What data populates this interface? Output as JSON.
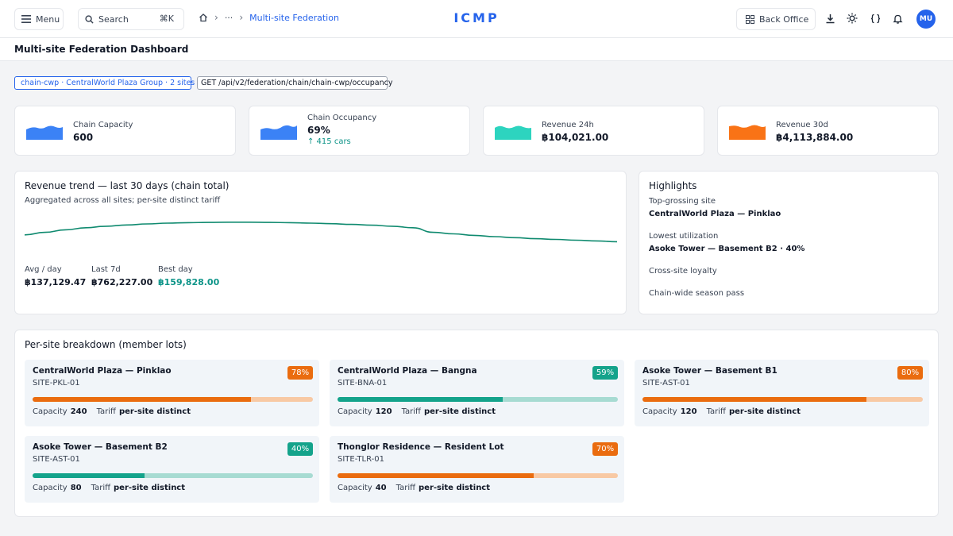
{
  "topbar": {
    "menu_label": "Menu",
    "search_label": "Search",
    "search_shortcut": "⌘K",
    "breadcrumb_ellipsis": "···",
    "breadcrumb_current": "Multi-site Federation",
    "brand": "ICMP",
    "back_office_label": "Back Office",
    "avatar_initials": "MU"
  },
  "page": {
    "title": "Multi-site Federation Dashboard"
  },
  "chips": {
    "chain": "chain-cwp · CentralWorld Plaza Group · 2 sites",
    "api": "GET /api/v2/federation/chain/chain-cwp/occupancy"
  },
  "kpis": [
    {
      "label": "Chain Capacity",
      "value": "600",
      "color": "#3b82f6"
    },
    {
      "label": "Chain Occupancy",
      "value": "69%",
      "sub": "↑ 415 cars",
      "color": "#3b82f6"
    },
    {
      "label": "Revenue 24h",
      "value": "฿104,021.00",
      "color": "#2dd4bf"
    },
    {
      "label": "Revenue 30d",
      "value": "฿4,113,884.00",
      "color": "#f97316"
    }
  ],
  "trend": {
    "title": "Revenue trend — last 30 days (chain total)",
    "subtitle": "Aggregated across all sites; per-site distinct tariff",
    "stats": [
      {
        "label": "Avg / day",
        "value": "฿137,129.47"
      },
      {
        "label": "Last 7d",
        "value": "฿762,227.00"
      },
      {
        "label": "Best day",
        "value": "฿159,828.00"
      }
    ]
  },
  "chart_data": {
    "type": "line",
    "title": "",
    "xlabel": "",
    "ylabel": "",
    "y": [
      0.32,
      0.42,
      0.52,
      0.6,
      0.66,
      0.71,
      0.75,
      0.78,
      0.8,
      0.81,
      0.82,
      0.82,
      0.81,
      0.8,
      0.78,
      0.76,
      0.73,
      0.7,
      0.66,
      0.6,
      0.42,
      0.36,
      0.3,
      0.25,
      0.21,
      0.17,
      0.14,
      0.11,
      0.08,
      0.05
    ],
    "color": "#0f8a6f",
    "grid": false
  },
  "highlights": {
    "title": "Highlights",
    "top_label": "Top-grossing site",
    "top_value": "CentralWorld Plaza — Pinklao",
    "low_label": "Lowest utilization",
    "low_value": "Asoke Tower — Basement B2 · 40%",
    "loyalty_label": "Cross-site loyalty",
    "pass_label": "Chain-wide season pass"
  },
  "breakdown": {
    "title": "Per-site breakdown (member lots)",
    "capacity_label": "Capacity",
    "tariff_label": "Tariff",
    "sites": [
      {
        "name": "CentralWorld Plaza — Pinklao",
        "id": "SITE-PKL-01",
        "pct": 78,
        "pct_label": "78%",
        "capacity": "240",
        "tariff": "per-site distinct",
        "color": "#ea6c0f",
        "track": "#f8c9a4"
      },
      {
        "name": "CentralWorld Plaza — Bangna",
        "id": "SITE-BNA-01",
        "pct": 59,
        "pct_label": "59%",
        "capacity": "120",
        "tariff": "per-site distinct",
        "color": "#14a38b",
        "track": "#a7dbd2"
      },
      {
        "name": "Asoke Tower — Basement B1",
        "id": "SITE-AST-01",
        "pct": 80,
        "pct_label": "80%",
        "capacity": "120",
        "tariff": "per-site distinct",
        "color": "#ea6c0f",
        "track": "#f8c9a4"
      },
      {
        "name": "Asoke Tower — Basement B2",
        "id": "SITE-AST-01",
        "pct": 40,
        "pct_label": "40%",
        "capacity": "80",
        "tariff": "per-site distinct",
        "color": "#14a38b",
        "track": "#a7dbd2"
      },
      {
        "name": "Thonglor Residence — Resident Lot",
        "id": "SITE-TLR-01",
        "pct": 70,
        "pct_label": "70%",
        "capacity": "40",
        "tariff": "per-site distinct",
        "color": "#ea6c0f",
        "track": "#f8c9a4"
      }
    ]
  }
}
